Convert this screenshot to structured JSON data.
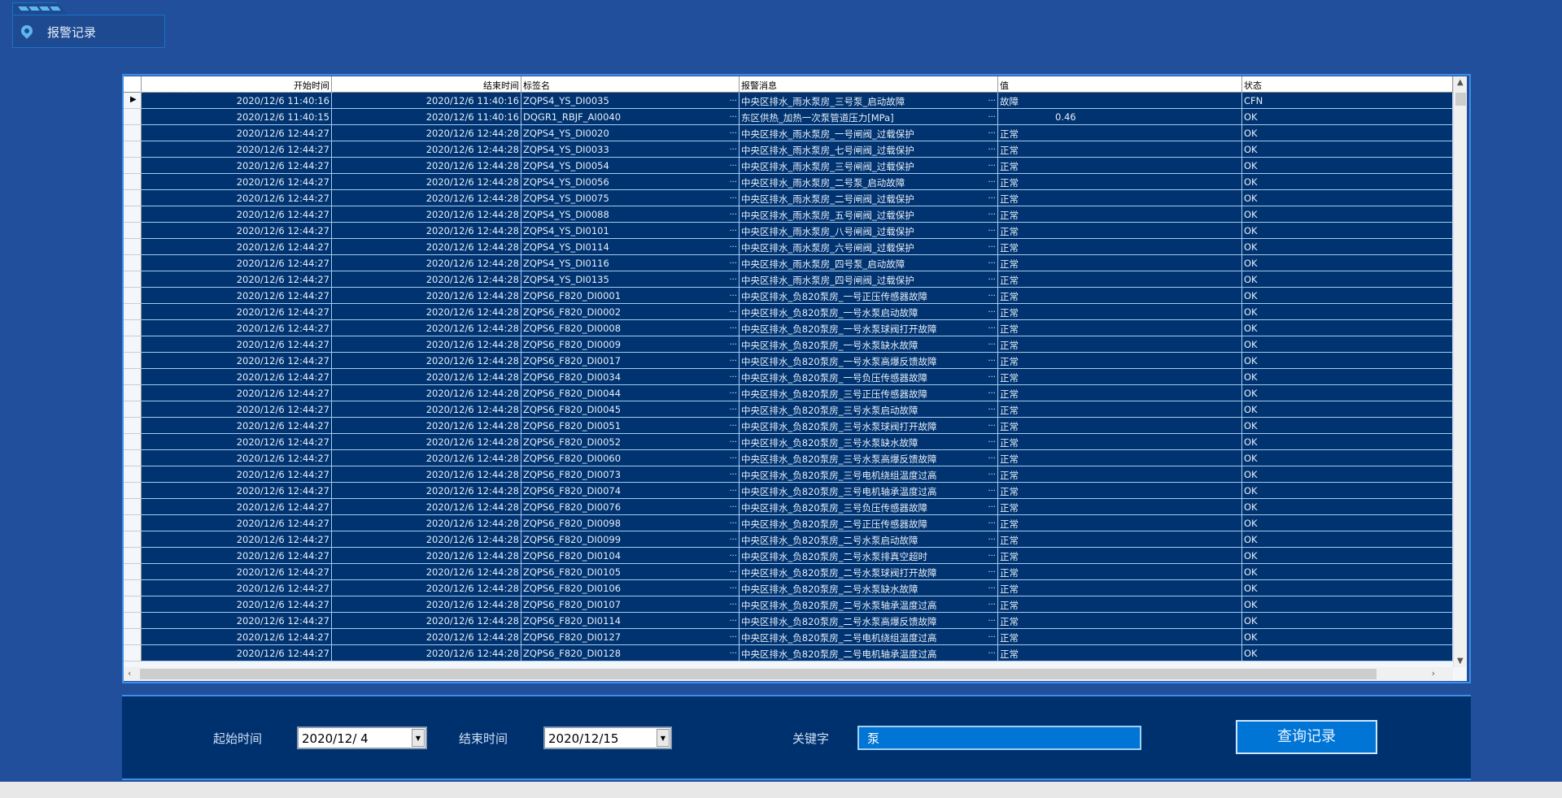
{
  "header": {
    "title": "报警记录",
    "icon": "location-pin-icon"
  },
  "table": {
    "columns": [
      "",
      "开始时间",
      "结束时间",
      "标签名",
      "报警消息",
      "值",
      "状态"
    ],
    "rows": [
      [
        "2020/12/6 11:40:16",
        "2020/12/6 11:40:16",
        "ZQPS4_YS_DI0035",
        "中央区排水_雨水泵房_三号泵_启动故障",
        "故障",
        "CFN"
      ],
      [
        "2020/12/6 11:40:15",
        "2020/12/6 11:40:16",
        "DQGR1_RBJF_AI0040",
        "东区供热_加热一次泵管道压力[MPa]",
        "0.46",
        "OK"
      ],
      [
        "2020/12/6 12:44:27",
        "2020/12/6 12:44:28",
        "ZQPS4_YS_DI0020",
        "中央区排水_雨水泵房_一号闸阀_过载保护",
        "正常",
        "OK"
      ],
      [
        "2020/12/6 12:44:27",
        "2020/12/6 12:44:28",
        "ZQPS4_YS_DI0033",
        "中央区排水_雨水泵房_七号闸阀_过载保护",
        "正常",
        "OK"
      ],
      [
        "2020/12/6 12:44:27",
        "2020/12/6 12:44:28",
        "ZQPS4_YS_DI0054",
        "中央区排水_雨水泵房_三号闸阀_过载保护",
        "正常",
        "OK"
      ],
      [
        "2020/12/6 12:44:27",
        "2020/12/6 12:44:28",
        "ZQPS4_YS_DI0056",
        "中央区排水_雨水泵房_二号泵_启动故障",
        "正常",
        "OK"
      ],
      [
        "2020/12/6 12:44:27",
        "2020/12/6 12:44:28",
        "ZQPS4_YS_DI0075",
        "中央区排水_雨水泵房_二号闸阀_过载保护",
        "正常",
        "OK"
      ],
      [
        "2020/12/6 12:44:27",
        "2020/12/6 12:44:28",
        "ZQPS4_YS_DI0088",
        "中央区排水_雨水泵房_五号闸阀_过载保护",
        "正常",
        "OK"
      ],
      [
        "2020/12/6 12:44:27",
        "2020/12/6 12:44:28",
        "ZQPS4_YS_DI0101",
        "中央区排水_雨水泵房_八号闸阀_过载保护",
        "正常",
        "OK"
      ],
      [
        "2020/12/6 12:44:27",
        "2020/12/6 12:44:28",
        "ZQPS4_YS_DI0114",
        "中央区排水_雨水泵房_六号闸阀_过载保护",
        "正常",
        "OK"
      ],
      [
        "2020/12/6 12:44:27",
        "2020/12/6 12:44:28",
        "ZQPS4_YS_DI0116",
        "中央区排水_雨水泵房_四号泵_启动故障",
        "正常",
        "OK"
      ],
      [
        "2020/12/6 12:44:27",
        "2020/12/6 12:44:28",
        "ZQPS4_YS_DI0135",
        "中央区排水_雨水泵房_四号闸阀_过载保护",
        "正常",
        "OK"
      ],
      [
        "2020/12/6 12:44:27",
        "2020/12/6 12:44:28",
        "ZQPS6_F820_DI0001",
        "中央区排水_负820泵房_一号正压传感器故障",
        "正常",
        "OK"
      ],
      [
        "2020/12/6 12:44:27",
        "2020/12/6 12:44:28",
        "ZQPS6_F820_DI0002",
        "中央区排水_负820泵房_一号水泵启动故障",
        "正常",
        "OK"
      ],
      [
        "2020/12/6 12:44:27",
        "2020/12/6 12:44:28",
        "ZQPS6_F820_DI0008",
        "中央区排水_负820泵房_一号水泵球阀打开故障",
        "正常",
        "OK"
      ],
      [
        "2020/12/6 12:44:27",
        "2020/12/6 12:44:28",
        "ZQPS6_F820_DI0009",
        "中央区排水_负820泵房_一号水泵缺水故障",
        "正常",
        "OK"
      ],
      [
        "2020/12/6 12:44:27",
        "2020/12/6 12:44:28",
        "ZQPS6_F820_DI0017",
        "中央区排水_负820泵房_一号水泵高爆反馈故障",
        "正常",
        "OK"
      ],
      [
        "2020/12/6 12:44:27",
        "2020/12/6 12:44:28",
        "ZQPS6_F820_DI0034",
        "中央区排水_负820泵房_一号负压传感器故障",
        "正常",
        "OK"
      ],
      [
        "2020/12/6 12:44:27",
        "2020/12/6 12:44:28",
        "ZQPS6_F820_DI0044",
        "中央区排水_负820泵房_三号正压传感器故障",
        "正常",
        "OK"
      ],
      [
        "2020/12/6 12:44:27",
        "2020/12/6 12:44:28",
        "ZQPS6_F820_DI0045",
        "中央区排水_负820泵房_三号水泵启动故障",
        "正常",
        "OK"
      ],
      [
        "2020/12/6 12:44:27",
        "2020/12/6 12:44:28",
        "ZQPS6_F820_DI0051",
        "中央区排水_负820泵房_三号水泵球阀打开故障",
        "正常",
        "OK"
      ],
      [
        "2020/12/6 12:44:27",
        "2020/12/6 12:44:28",
        "ZQPS6_F820_DI0052",
        "中央区排水_负820泵房_三号水泵缺水故障",
        "正常",
        "OK"
      ],
      [
        "2020/12/6 12:44:27",
        "2020/12/6 12:44:28",
        "ZQPS6_F820_DI0060",
        "中央区排水_负820泵房_三号水泵高爆反馈故障",
        "正常",
        "OK"
      ],
      [
        "2020/12/6 12:44:27",
        "2020/12/6 12:44:28",
        "ZQPS6_F820_DI0073",
        "中央区排水_负820泵房_三号电机绕组温度过高",
        "正常",
        "OK"
      ],
      [
        "2020/12/6 12:44:27",
        "2020/12/6 12:44:28",
        "ZQPS6_F820_DI0074",
        "中央区排水_负820泵房_三号电机轴承温度过高",
        "正常",
        "OK"
      ],
      [
        "2020/12/6 12:44:27",
        "2020/12/6 12:44:28",
        "ZQPS6_F820_DI0076",
        "中央区排水_负820泵房_三号负压传感器故障",
        "正常",
        "OK"
      ],
      [
        "2020/12/6 12:44:27",
        "2020/12/6 12:44:28",
        "ZQPS6_F820_DI0098",
        "中央区排水_负820泵房_二号正压传感器故障",
        "正常",
        "OK"
      ],
      [
        "2020/12/6 12:44:27",
        "2020/12/6 12:44:28",
        "ZQPS6_F820_DI0099",
        "中央区排水_负820泵房_二号水泵启动故障",
        "正常",
        "OK"
      ],
      [
        "2020/12/6 12:44:27",
        "2020/12/6 12:44:28",
        "ZQPS6_F820_DI0104",
        "中央区排水_负820泵房_二号水泵排真空超时",
        "正常",
        "OK"
      ],
      [
        "2020/12/6 12:44:27",
        "2020/12/6 12:44:28",
        "ZQPS6_F820_DI0105",
        "中央区排水_负820泵房_二号水泵球阀打开故障",
        "正常",
        "OK"
      ],
      [
        "2020/12/6 12:44:27",
        "2020/12/6 12:44:28",
        "ZQPS6_F820_DI0106",
        "中央区排水_负820泵房_二号水泵缺水故障",
        "正常",
        "OK"
      ],
      [
        "2020/12/6 12:44:27",
        "2020/12/6 12:44:28",
        "ZQPS6_F820_DI0107",
        "中央区排水_负820泵房_二号水泵轴承温度过高",
        "正常",
        "OK"
      ],
      [
        "2020/12/6 12:44:27",
        "2020/12/6 12:44:28",
        "ZQPS6_F820_DI0114",
        "中央区排水_负820泵房_二号水泵高爆反馈故障",
        "正常",
        "OK"
      ],
      [
        "2020/12/6 12:44:27",
        "2020/12/6 12:44:28",
        "ZQPS6_F820_DI0127",
        "中央区排水_负820泵房_二号电机绕组温度过高",
        "正常",
        "OK"
      ],
      [
        "2020/12/6 12:44:27",
        "2020/12/6 12:44:28",
        "ZQPS6_F820_DI0128",
        "中央区排水_负820泵房_二号电机轴承温度过高",
        "正常",
        "OK"
      ]
    ],
    "current_row_marker": "▶"
  },
  "filter": {
    "start_label": "起始时间",
    "start_value": "2020/12/ 4",
    "end_label": "结束时间",
    "end_value": "2020/12/15",
    "keyword_label": "关键字",
    "keyword_value": "泵",
    "query_button": "查询记录"
  },
  "colors": {
    "background": "#214f9b",
    "row": "#003370",
    "accent": "#0075d6",
    "frame": "#3d8fe8"
  }
}
